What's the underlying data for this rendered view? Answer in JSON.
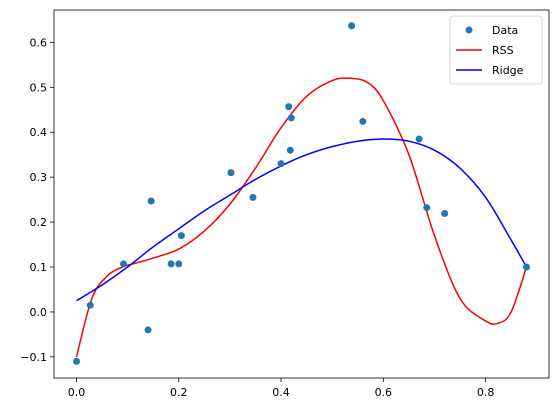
{
  "chart_data": {
    "type": "scatter",
    "title": "",
    "xlabel": "",
    "ylabel": "",
    "xlim": [
      -0.044,
      0.924
    ],
    "ylim": [
      -0.147,
      0.672
    ],
    "xticks": [
      0.0,
      0.2,
      0.4,
      0.6,
      0.8
    ],
    "xtick_labels": [
      "0.0",
      "0.2",
      "0.4",
      "0.6",
      "0.8"
    ],
    "yticks": [
      -0.1,
      0.0,
      0.1,
      0.2,
      0.3,
      0.4,
      0.5,
      0.6
    ],
    "ytick_labels": [
      "−0.1",
      "0.0",
      "0.1",
      "0.2",
      "0.3",
      "0.4",
      "0.5",
      "0.6"
    ],
    "grid": false,
    "legend_position": "top-right",
    "series": [
      {
        "name": "Data",
        "kind": "scatter",
        "color": "#1f77b4",
        "x": [
          0.0,
          0.027,
          0.092,
          0.14,
          0.146,
          0.185,
          0.2,
          0.205,
          0.302,
          0.345,
          0.4,
          0.415,
          0.418,
          0.42,
          0.538,
          0.56,
          0.67,
          0.685,
          0.72,
          0.88
        ],
        "y": [
          -0.11,
          0.015,
          0.107,
          -0.04,
          0.247,
          0.107,
          0.107,
          0.17,
          0.31,
          0.255,
          0.33,
          0.457,
          0.36,
          0.432,
          0.637,
          0.424,
          0.385,
          0.232,
          0.219,
          0.1
        ]
      },
      {
        "name": "RSS",
        "kind": "line",
        "color": "#ff0000",
        "x": [
          0.0,
          0.03,
          0.06,
          0.09,
          0.12,
          0.15,
          0.2,
          0.25,
          0.3,
          0.35,
          0.4,
          0.45,
          0.5,
          0.535,
          0.57,
          0.6,
          0.65,
          0.7,
          0.75,
          0.8,
          0.825,
          0.85,
          0.88
        ],
        "y": [
          -0.1,
          0.03,
          0.08,
          0.1,
          0.11,
          0.12,
          0.14,
          0.18,
          0.24,
          0.32,
          0.41,
          0.48,
          0.515,
          0.52,
          0.51,
          0.47,
          0.35,
          0.17,
          0.03,
          -0.02,
          -0.025,
          0.0,
          0.1
        ]
      },
      {
        "name": "Ridge",
        "kind": "line",
        "color": "#0000ff",
        "x": [
          0.0,
          0.05,
          0.1,
          0.15,
          0.2,
          0.25,
          0.3,
          0.35,
          0.4,
          0.45,
          0.5,
          0.55,
          0.6,
          0.65,
          0.7,
          0.75,
          0.8,
          0.85,
          0.88
        ],
        "y": [
          0.025,
          0.06,
          0.1,
          0.145,
          0.185,
          0.225,
          0.26,
          0.295,
          0.325,
          0.35,
          0.368,
          0.38,
          0.385,
          0.38,
          0.36,
          0.32,
          0.255,
          0.16,
          0.1
        ]
      }
    ]
  }
}
